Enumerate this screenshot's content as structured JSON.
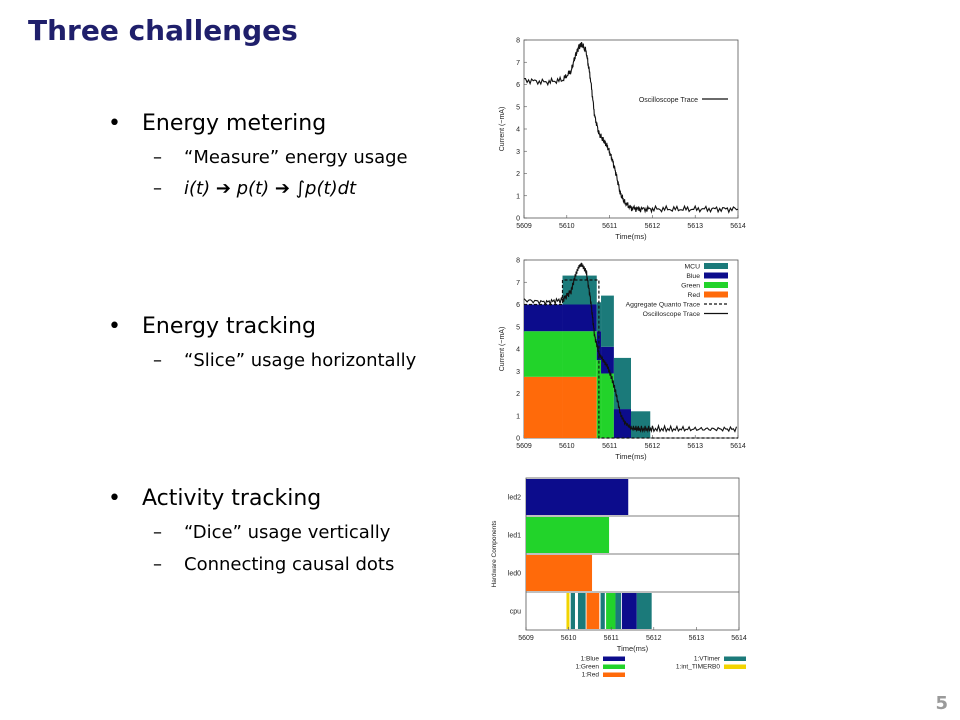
{
  "slide": {
    "title": "Three challenges",
    "page_number": "5",
    "sections": [
      {
        "heading": "Energy metering",
        "subs": [
          "“Measure” energy usage",
          "i(t)  ➔  p(t)  ➔  ∫p(t)dt"
        ]
      },
      {
        "heading": "Energy tracking",
        "subs": [
          "“Slice” usage horizontally"
        ]
      },
      {
        "heading": "Activity tracking",
        "subs": [
          "“Dice” usage vertically",
          "Connecting causal dots"
        ]
      }
    ]
  },
  "chart_data": [
    {
      "type": "line",
      "xlabel": "Time(ms)",
      "ylabel": "Current (~mA)",
      "xlim": [
        5609,
        5614
      ],
      "ylim": [
        0,
        8
      ],
      "xticks": [
        5609,
        5610,
        5611,
        5612,
        5613,
        5614
      ],
      "yticks": [
        0,
        1,
        2,
        3,
        4,
        5,
        6,
        7,
        8
      ],
      "legend": [
        "Oscilloscope Trace"
      ],
      "series": [
        {
          "name": "Oscilloscope Trace",
          "x": [
            5609,
            5609.5,
            5609.9,
            5610.1,
            5610.2,
            5610.28,
            5610.35,
            5610.45,
            5610.55,
            5610.65,
            5610.75,
            5610.85,
            5610.95,
            5611.05,
            5611.15,
            5611.25,
            5611.35,
            5611.5,
            5611.7,
            5612,
            5612.5,
            5613,
            5613.5,
            5614
          ],
          "y": [
            6.2,
            6.1,
            6.2,
            6.6,
            7.3,
            7.7,
            7.8,
            7.5,
            6.3,
            4.6,
            3.8,
            3.5,
            3.2,
            2.7,
            2.0,
            1.1,
            0.7,
            0.45,
            0.4,
            0.4,
            0.4,
            0.4,
            0.4,
            0.4
          ]
        }
      ]
    },
    {
      "type": "bar",
      "xlabel": "Time(ms)",
      "ylabel": "Current (~mA)",
      "xlim": [
        5609,
        5614
      ],
      "ylim": [
        0,
        8
      ],
      "xticks": [
        5609,
        5610,
        5611,
        5612,
        5613,
        5614
      ],
      "yticks": [
        0,
        1,
        2,
        3,
        4,
        5,
        6,
        7,
        8
      ],
      "legend": [
        "MCU",
        "Blue",
        "Green",
        "Red",
        "Aggregate Quanto Trace",
        "Oscilloscope Trace"
      ],
      "colors": {
        "MCU": "#1b7a7a",
        "Blue": "#0c0c8c",
        "Green": "#22d32a",
        "Red": "#ff6a0a"
      },
      "segments": [
        {
          "x0": 5609,
          "x1": 5609.9,
          "red": 2.75,
          "green": 2.05,
          "blue": 1.2,
          "mcu": 0
        },
        {
          "x0": 5609.9,
          "x1": 5610.7,
          "red": 2.75,
          "green": 2.05,
          "blue": 1.2,
          "mcu": 1.3
        },
        {
          "x0": 5610.7,
          "x1": 5610.8,
          "red": 0,
          "green": 3.5,
          "blue": 1.3,
          "mcu": 1.3
        },
        {
          "x0": 5610.8,
          "x1": 5611.1,
          "red": 0,
          "green": 2.9,
          "blue": 1.2,
          "mcu": 2.3
        },
        {
          "x0": 5611.1,
          "x1": 5611.5,
          "red": 0,
          "green": 0,
          "blue": 1.3,
          "mcu": 2.3
        },
        {
          "x0": 5611.5,
          "x1": 5611.95,
          "red": 0,
          "green": 0,
          "blue": 0,
          "mcu": 1.2
        }
      ],
      "aggregate_trace": {
        "x": [
          5609,
          5609.9,
          5609.9,
          5610.75,
          5610.75,
          5614
        ],
        "y": [
          6.0,
          6.0,
          7.1,
          7.1,
          0,
          0
        ]
      }
    },
    {
      "type": "gantt",
      "xlabel": "Time(ms)",
      "ylabel": "Hardware Components",
      "xlim": [
        5609,
        5614
      ],
      "xticks": [
        5609,
        5610,
        5611,
        5612,
        5613,
        5614
      ],
      "rows": [
        "led2",
        "led1",
        "led0",
        "cpu"
      ],
      "bars": [
        {
          "row": "led2",
          "start": 5609,
          "end": 5611.4,
          "color": "#0c0c8c"
        },
        {
          "row": "led1",
          "start": 5609,
          "end": 5610.95,
          "color": "#22d32a"
        },
        {
          "row": "led0",
          "start": 5609,
          "end": 5610.55,
          "color": "#ff6a0a"
        },
        {
          "row": "cpu",
          "start": 5609.95,
          "end": 5610.02,
          "color": "#f2d400"
        },
        {
          "row": "cpu",
          "start": 5610.05,
          "end": 5610.15,
          "color": "#1b7a7a"
        },
        {
          "row": "cpu",
          "start": 5610.22,
          "end": 5610.4,
          "color": "#1b7a7a"
        },
        {
          "row": "cpu",
          "start": 5610.42,
          "end": 5610.72,
          "color": "#ff6a0a"
        },
        {
          "row": "cpu",
          "start": 5610.75,
          "end": 5610.85,
          "color": "#1b7a7a"
        },
        {
          "row": "cpu",
          "start": 5610.88,
          "end": 5611.1,
          "color": "#22d32a"
        },
        {
          "row": "cpu",
          "start": 5611.1,
          "end": 5611.23,
          "color": "#1b7a7a"
        },
        {
          "row": "cpu",
          "start": 5611.25,
          "end": 5611.6,
          "color": "#0c0c8c"
        },
        {
          "row": "cpu",
          "start": 5611.6,
          "end": 5611.95,
          "color": "#1b7a7a"
        }
      ],
      "legend": [
        {
          "label": "1:Blue",
          "color": "#0c0c8c"
        },
        {
          "label": "1:VTimer",
          "color": "#1b7a7a"
        },
        {
          "label": "1:Green",
          "color": "#22d32a"
        },
        {
          "label": "1:int_TIMERB0",
          "color": "#f2d400"
        },
        {
          "label": "1:Red",
          "color": "#ff6a0a"
        }
      ]
    }
  ]
}
